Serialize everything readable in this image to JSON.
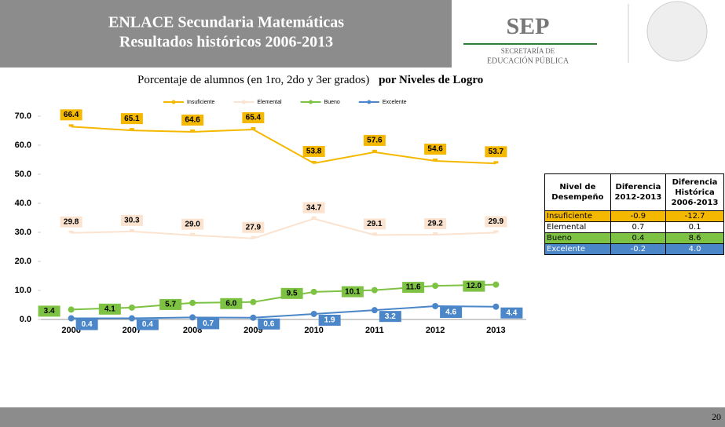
{
  "header": {
    "title_lines": [
      "ENLACE Secundaria Matemáticas",
      "Resultados históricos 2006-2013"
    ]
  },
  "logo": {
    "name": "SEP",
    "lines": [
      "SECRETARÍA DE",
      "EDUCACIÓN PÚBLICA"
    ]
  },
  "subtitle": {
    "text": "Porcentaje de alumnos (en 1ro, 2do y 3er grados)",
    "emphasis": "por Niveles de Logro"
  },
  "chart_data": {
    "type": "line",
    "categories": [
      "2006",
      "2007",
      "2008",
      "2009",
      "2010",
      "2011",
      "2012",
      "2013"
    ],
    "series": [
      {
        "name": "Insuficiente",
        "color": "#f5b800",
        "values": [
          66.4,
          65.1,
          64.6,
          65.4,
          53.8,
          57.6,
          54.6,
          53.7
        ],
        "value_labels": [
          "66.4",
          "65.1",
          "64.6",
          "65.4",
          "53.8",
          "57.6",
          "54.6",
          "53.7"
        ]
      },
      {
        "name": "Elemental",
        "color": "#fbe3cf",
        "values": [
          29.8,
          30.3,
          29.0,
          27.9,
          34.7,
          29.1,
          29.2,
          29.9
        ],
        "value_labels": [
          "29.8",
          "30.3",
          "29.0",
          "27.9",
          "34.7",
          "29.1",
          "29.2",
          "29.9"
        ]
      },
      {
        "name": "Bueno",
        "color": "#7dc242",
        "values": [
          3.4,
          4.1,
          5.7,
          6.0,
          9.5,
          10.1,
          11.6,
          12.0
        ],
        "value_labels": [
          "3.4",
          "4.1",
          "5.7",
          "6.0",
          "9.5",
          "10.1",
          "11.6",
          "12.0"
        ]
      },
      {
        "name": "Excelente",
        "color": "#4a86c8",
        "values": [
          0.4,
          0.4,
          0.7,
          0.6,
          1.9,
          3.2,
          4.6,
          4.4
        ],
        "value_labels": [
          "0.4",
          "0.4",
          "0.7",
          "0.6",
          "1.9",
          "3.2",
          "4.6",
          "4.4"
        ]
      }
    ],
    "ylim": [
      0,
      70
    ],
    "yticks": [
      {
        "value": 0,
        "label": "0.0"
      },
      {
        "value": 10,
        "label": "10.0"
      },
      {
        "value": 20,
        "label": "20.0"
      },
      {
        "value": 30,
        "label": "30.0"
      },
      {
        "value": 40,
        "label": "40.0"
      },
      {
        "value": 50,
        "label": "50.0"
      },
      {
        "value": 60,
        "label": "60.0"
      },
      {
        "value": 70,
        "label": "70.0"
      }
    ],
    "grid": false,
    "legend": "top"
  },
  "table": {
    "header": [
      "Nivel de Desempeño",
      "Diferencia 2012-2013",
      "Diferencia Histórica 2006-2013"
    ],
    "rows": [
      [
        "Insuficiente",
        "-0.9",
        "-12.7"
      ],
      [
        "Elemental",
        "0.7",
        "0.1"
      ],
      [
        "Bueno",
        "0.4",
        "8.6"
      ],
      [
        "Excelente",
        "-0.2",
        "4.0"
      ]
    ]
  },
  "footer": {
    "page": "20"
  }
}
